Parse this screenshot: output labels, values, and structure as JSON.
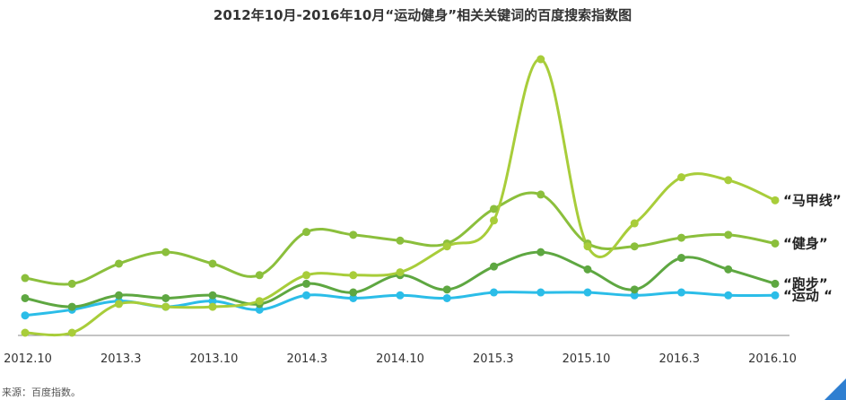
{
  "chart_data": {
    "type": "line",
    "title": "2012年10月-2016年10月“运动健身”相关关键词的百度搜索指数图",
    "xlabel": "",
    "ylabel": "",
    "x_ticks": [
      "2012.10",
      "2013.3",
      "2013.10",
      "2014.3",
      "2014.10",
      "2015.3",
      "2015.10",
      "2016.3",
      "2016.10"
    ],
    "ylim": [
      0,
      100
    ],
    "grid": false,
    "series": [
      {
        "name": "“马甲线”",
        "color": "#a8cd3a",
        "values": [
          0,
          0,
          10,
          9,
          9,
          11,
          20,
          20,
          21,
          30,
          39,
          95,
          30,
          38,
          54,
          53,
          46
        ]
      },
      {
        "name": "“健身”",
        "color": "#8bbf3c",
        "values": [
          19,
          17,
          24,
          28,
          24,
          20,
          35,
          34,
          32,
          31,
          43,
          48,
          31,
          30,
          33,
          34,
          31
        ]
      },
      {
        "name": "“跑步”",
        "color": "#5ea741",
        "values": [
          12,
          9,
          13,
          12,
          13,
          10,
          17,
          14,
          20,
          15,
          23,
          28,
          22,
          15,
          26,
          22,
          17
        ]
      },
      {
        "name": "“运动 “",
        "color": "#2bbde8",
        "values": [
          6,
          8,
          11,
          9,
          11,
          8,
          13,
          12,
          13,
          12,
          14,
          14,
          14,
          13,
          14,
          13,
          13
        ]
      }
    ]
  },
  "source_text": "来源：百度指数。"
}
